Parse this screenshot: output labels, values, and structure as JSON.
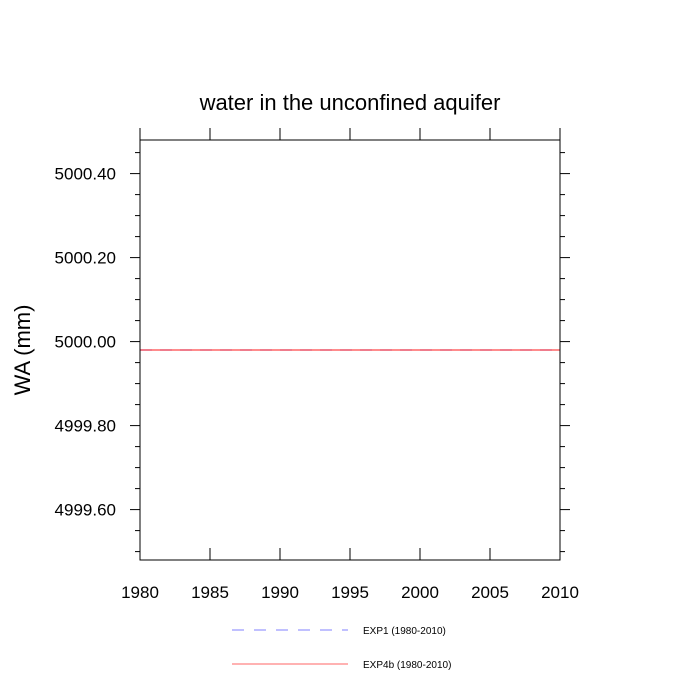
{
  "chart_data": {
    "type": "line",
    "title": "water in the unconfined aquifer",
    "xlabel": "",
    "ylabel": "WA  (mm)",
    "xlim": [
      1980,
      2010
    ],
    "ylim": [
      4999.48,
      5000.48
    ],
    "x_ticks": [
      1980,
      1985,
      1990,
      1995,
      2000,
      2005,
      2010
    ],
    "y_ticks": [
      "4999.60",
      "4999.80",
      "5000.00",
      "5000.20",
      "5000.40"
    ],
    "grid": false,
    "legend_position": "bottom",
    "series": [
      {
        "name": "EXP1 (1980-2010)",
        "color": "#8080ff",
        "style": "dashed",
        "x": [
          1980,
          2010
        ],
        "y": [
          4999.98,
          4999.98
        ]
      },
      {
        "name": "EXP4b (1980-2010)",
        "color": "#ff6666",
        "style": "solid",
        "x": [
          1980,
          2010
        ],
        "y": [
          4999.98,
          4999.98
        ]
      }
    ]
  }
}
